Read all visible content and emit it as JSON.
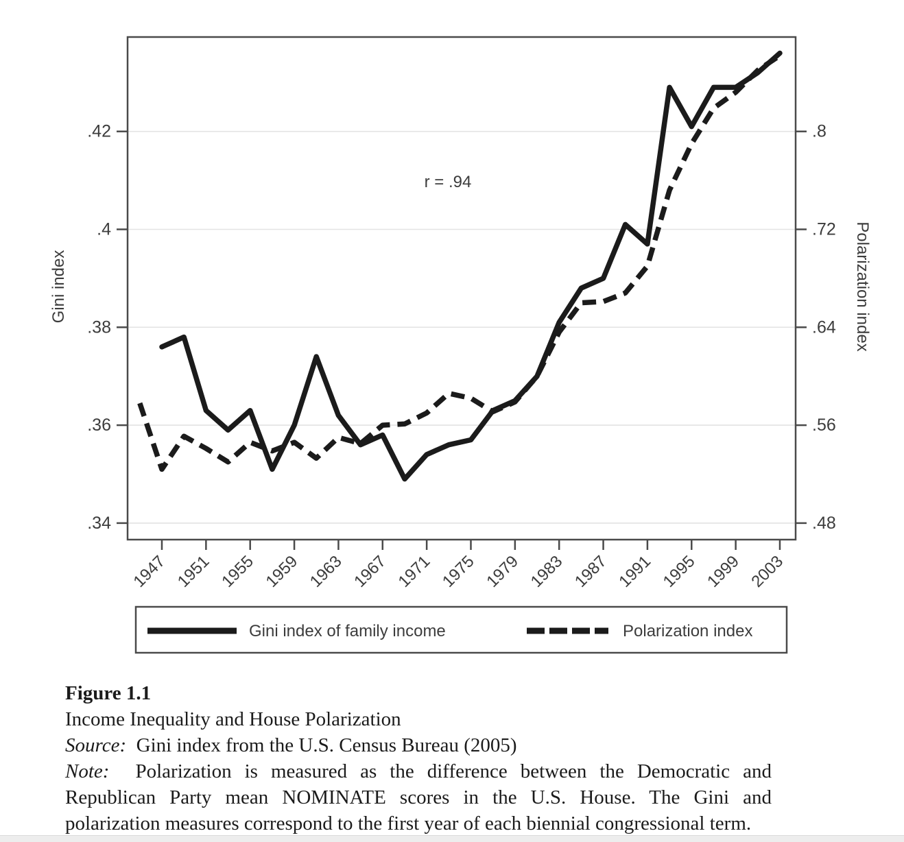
{
  "figure": {
    "annotation": "r = .94",
    "colors": {
      "line": "#1b1b1b",
      "frame": "#4a4a4a",
      "grid": "#e3e3e3",
      "chart_text": "#3c3c3c",
      "caption_text": "#1b1b1b",
      "bottom_strip": "#ededed"
    }
  },
  "chart_data": {
    "type": "line",
    "title": "",
    "xlabel": "",
    "x_tick_labels": [
      "1947",
      "1951",
      "1955",
      "1959",
      "1963",
      "1967",
      "1971",
      "1975",
      "1979",
      "1983",
      "1987",
      "1991",
      "1995",
      "1999",
      "2003"
    ],
    "x_tick_years": [
      1947,
      1951,
      1955,
      1959,
      1963,
      1967,
      1971,
      1975,
      1979,
      1983,
      1987,
      1991,
      1995,
      1999,
      2003
    ],
    "y_left": {
      "title": "Gini index",
      "tick_labels": [
        ".34",
        ".36",
        ".38",
        ".4",
        ".42"
      ],
      "tick_values": [
        0.34,
        0.36,
        0.38,
        0.4,
        0.42
      ],
      "range": [
        0.3367,
        0.4393
      ],
      "grid": true
    },
    "y_right": {
      "title": "Polarization index",
      "tick_labels": [
        ".48",
        ".56",
        ".64",
        ".72",
        ".8"
      ],
      "tick_values": [
        0.48,
        0.56,
        0.64,
        0.72,
        0.8
      ],
      "range": [
        0.4868,
        0.8972
      ]
    },
    "series": [
      {
        "name": "Gini index of family income",
        "style": "solid",
        "axis": "left",
        "years": [
          1947,
          1949,
          1951,
          1953,
          1955,
          1957,
          1959,
          1961,
          1963,
          1965,
          1967,
          1969,
          1971,
          1973,
          1975,
          1977,
          1979,
          1981,
          1983,
          1985,
          1987,
          1989,
          1991,
          1993,
          1995,
          1997,
          1999,
          2001,
          2003
        ],
        "values": [
          0.376,
          0.378,
          0.363,
          0.359,
          0.363,
          0.351,
          0.36,
          0.374,
          0.362,
          0.356,
          0.358,
          0.349,
          0.354,
          0.356,
          0.357,
          0.363,
          0.365,
          0.37,
          0.381,
          0.388,
          0.39,
          0.401,
          0.397,
          0.429,
          0.421,
          0.429,
          0.429,
          0.432,
          0.436
        ]
      },
      {
        "name": "Polarization index",
        "style": "dashed",
        "axis": "right",
        "years": [
          1945,
          1947,
          1949,
          1951,
          1953,
          1955,
          1957,
          1959,
          1961,
          1963,
          1965,
          1967,
          1969,
          1971,
          1973,
          1975,
          1977,
          1979,
          1981,
          1983,
          1985,
          1987,
          1989,
          1991,
          1993,
          1995,
          1997,
          1999,
          2001,
          2003
        ],
        "values": [
          0.578,
          0.524,
          0.551,
          0.541,
          0.53,
          0.546,
          0.539,
          0.546,
          0.533,
          0.55,
          0.545,
          0.56,
          0.561,
          0.57,
          0.586,
          0.582,
          0.571,
          0.579,
          0.6,
          0.636,
          0.66,
          0.661,
          0.668,
          0.69,
          0.752,
          0.79,
          0.819,
          0.832,
          0.85,
          0.862
        ]
      }
    ],
    "legend": {
      "position": "bottom",
      "items": [
        {
          "label": "Gini index of family income",
          "style": "solid"
        },
        {
          "label": "Polarization index",
          "style": "dashed"
        }
      ]
    }
  },
  "caption": {
    "figure_label": "Figure 1.1",
    "figure_title": "Income Inequality and House Polarization",
    "source_label": "Source:",
    "source_rest": "  Gini index from the U.S. Census Bureau (2005)",
    "note_label": "Note:",
    "note_rest": "  Polarization is measured as the difference between the Democratic and Republican Party mean NOMINATE scores in the U.S. House. The Gini and polarization measures correspond to the first year of each biennial congressional term."
  }
}
